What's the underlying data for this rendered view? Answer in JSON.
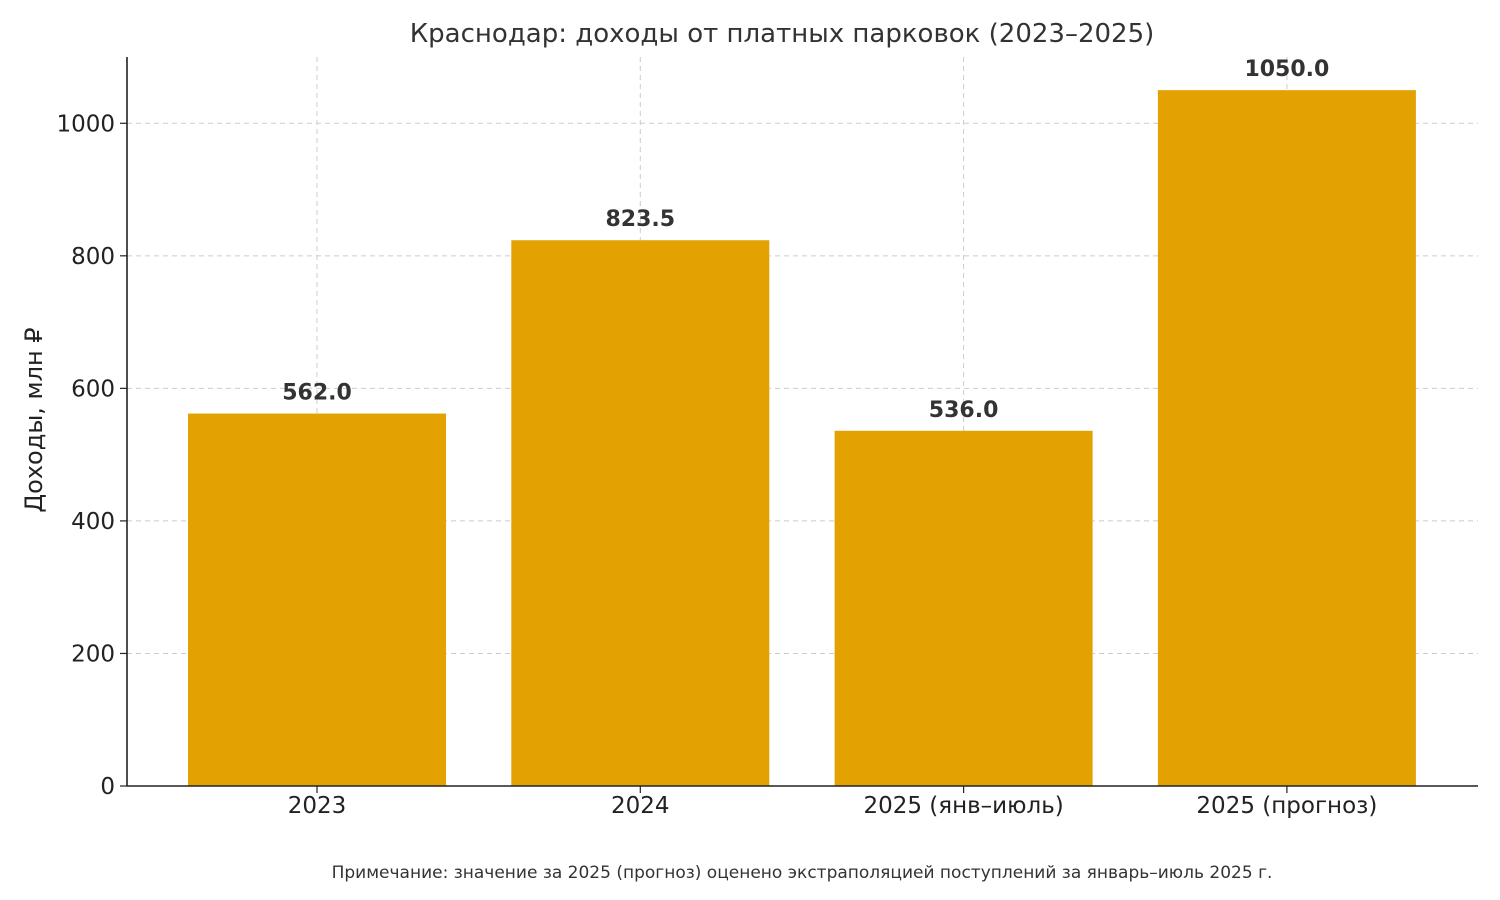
{
  "chart_data": {
    "type": "bar",
    "title": "Краснодар: доходы от платных парковок (2023–2025)",
    "ylabel": "Доходы, млн ₽",
    "xlabel": "",
    "categories": [
      "2023",
      "2024",
      "2025 (янв–июль)",
      "2025 (прогноз)"
    ],
    "values": [
      562.0,
      823.5,
      536.0,
      1050.0
    ],
    "value_labels": [
      "562.0",
      "823.5",
      "536.0",
      "1050.0"
    ],
    "yticks": [
      0,
      200,
      400,
      600,
      800,
      1000
    ],
    "ylim": [
      0,
      1100
    ],
    "grid": true,
    "legend": "none",
    "bar_color": "#e3a102",
    "note": "Примечание: значение за 2025 (прогноз) оценено экстраполяцией поступлений за январь–июль 2025 г."
  }
}
